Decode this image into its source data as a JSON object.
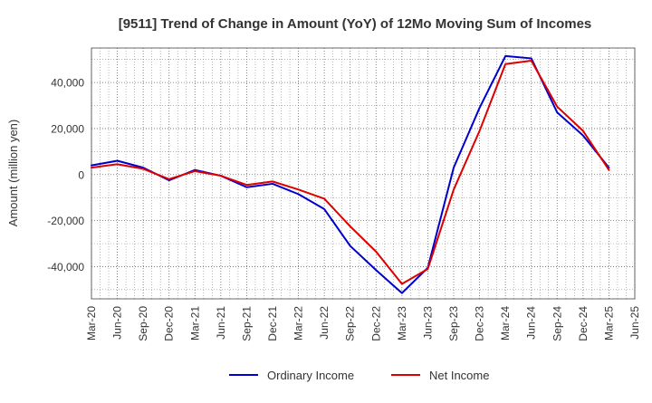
{
  "chart_data": {
    "type": "line",
    "title": "[9511]  Trend of Change in Amount (YoY) of 12Mo Moving Sum of Incomes",
    "xlabel": "",
    "ylabel": "Amount (million yen)",
    "ylim": [
      -54000,
      55000
    ],
    "yticks": [
      -40000,
      -20000,
      0,
      20000,
      40000
    ],
    "ytick_labels": [
      "-40,000",
      "-20,000",
      "0",
      "20,000",
      "40,000"
    ],
    "categories": [
      "Mar-20",
      "Jun-20",
      "Sep-20",
      "Dec-20",
      "Mar-21",
      "Jun-21",
      "Sep-21",
      "Dec-21",
      "Mar-22",
      "Jun-22",
      "Sep-22",
      "Dec-22",
      "Mar-23",
      "Jun-23",
      "Sep-23",
      "Dec-23",
      "Mar-24",
      "Jun-24",
      "Sep-24",
      "Dec-24",
      "Mar-25",
      "Jun-25"
    ],
    "grid": true,
    "legend_position": "bottom-center",
    "series": [
      {
        "name": "Ordinary Income",
        "color": "#0000cc",
        "values": [
          4000,
          6000,
          3000,
          -2500,
          2000,
          -500,
          -5500,
          -4000,
          -8500,
          -15000,
          -31000,
          -41500,
          -51500,
          -40500,
          3000,
          29000,
          51500,
          50500,
          27000,
          17000,
          3000,
          null
        ]
      },
      {
        "name": "Net Income",
        "color": "#dd0000",
        "values": [
          3000,
          4500,
          2500,
          -2000,
          1500,
          -500,
          -4500,
          -3000,
          -6500,
          -10500,
          -22500,
          -33500,
          -47500,
          -41000,
          -6500,
          19000,
          48000,
          49500,
          29500,
          19000,
          2000,
          null
        ]
      }
    ]
  }
}
